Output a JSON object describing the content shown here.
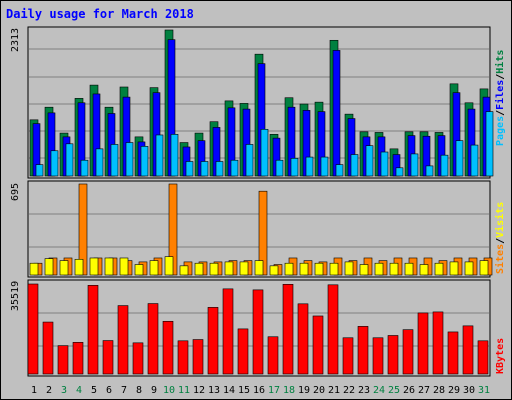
{
  "title": "Daily usage for March 2018",
  "colors": {
    "background": "#c0c0c0",
    "panel": "#c0c0c0",
    "hits": "#008040",
    "files": "#0000ff",
    "pages": "#00c0ff",
    "visits": "#ff8000",
    "sites": "#ffff00",
    "kbytes": "#ff0000",
    "title": "#0000ff",
    "weekend_day": "#008040"
  },
  "y_axis_labels": {
    "top": "2313",
    "middle": "695",
    "bottom": "35519"
  },
  "legend": {
    "top": [
      "Pages",
      "Files",
      "Hits"
    ],
    "middle": [
      "Sites",
      "Visits"
    ],
    "bottom": [
      "KBytes"
    ]
  },
  "chart_data": [
    {
      "type": "bar",
      "title": "Daily usage for March 2018",
      "panel": "hits_files_pages",
      "ylim": [
        0,
        2313
      ],
      "categories": [
        "1",
        "2",
        "3",
        "4",
        "5",
        "6",
        "7",
        "8",
        "9",
        "10",
        "11",
        "12",
        "13",
        "14",
        "15",
        "16",
        "17",
        "18",
        "19",
        "20",
        "21",
        "22",
        "23",
        "24",
        "25",
        "26",
        "27",
        "28",
        "29",
        "30",
        "31"
      ],
      "series": [
        {
          "name": "Hits",
          "values": [
            890,
            1090,
            680,
            1230,
            1440,
            1090,
            1410,
            620,
            1400,
            2313,
            530,
            680,
            860,
            1190,
            1150,
            1930,
            660,
            1240,
            1140,
            1170,
            2150,
            980,
            700,
            690,
            430,
            700,
            700,
            690,
            1460,
            1160,
            1380
          ]
        },
        {
          "name": "Files",
          "values": [
            830,
            1000,
            620,
            1160,
            1300,
            990,
            1250,
            540,
            1320,
            2160,
            460,
            560,
            770,
            1080,
            1060,
            1780,
            600,
            1090,
            1040,
            1020,
            1990,
            910,
            620,
            620,
            340,
            640,
            630,
            640,
            1320,
            1060,
            1250
          ]
        },
        {
          "name": "Pages",
          "values": [
            180,
            400,
            510,
            250,
            430,
            500,
            530,
            470,
            650,
            660,
            230,
            230,
            230,
            250,
            500,
            740,
            250,
            280,
            300,
            300,
            180,
            340,
            480,
            380,
            130,
            350,
            160,
            330,
            560,
            490,
            1020
          ]
        }
      ]
    },
    {
      "type": "bar",
      "panel": "visits_sites",
      "ylim": [
        0,
        695
      ],
      "categories": [
        "1",
        "2",
        "3",
        "4",
        "5",
        "6",
        "7",
        "8",
        "9",
        "10",
        "11",
        "12",
        "13",
        "14",
        "15",
        "16",
        "17",
        "18",
        "19",
        "20",
        "21",
        "22",
        "23",
        "24",
        "25",
        "26",
        "27",
        "28",
        "29",
        "30",
        "31"
      ],
      "series": [
        {
          "name": "Visits",
          "values": [
            90,
            130,
            130,
            695,
            130,
            130,
            110,
            100,
            130,
            695,
            100,
            100,
            100,
            110,
            110,
            640,
            80,
            130,
            110,
            100,
            130,
            110,
            130,
            110,
            130,
            130,
            130,
            110,
            130,
            130,
            130
          ]
        },
        {
          "name": "Sites",
          "values": [
            90,
            125,
            110,
            120,
            130,
            130,
            130,
            80,
            110,
            140,
            70,
            90,
            90,
            100,
            100,
            110,
            70,
            90,
            90,
            90,
            90,
            100,
            80,
            90,
            90,
            90,
            80,
            90,
            100,
            100,
            110
          ]
        }
      ]
    },
    {
      "type": "bar",
      "panel": "kbytes",
      "ylim": [
        0,
        35519
      ],
      "categories": [
        "1",
        "2",
        "3",
        "4",
        "5",
        "6",
        "7",
        "8",
        "9",
        "10",
        "11",
        "12",
        "13",
        "14",
        "15",
        "16",
        "17",
        "18",
        "19",
        "20",
        "21",
        "22",
        "23",
        "24",
        "25",
        "26",
        "27",
        "28",
        "29",
        "30",
        "31"
      ],
      "series": [
        {
          "name": "KBytes",
          "values": [
            35519,
            20500,
            11200,
            12500,
            35000,
            13200,
            27000,
            12300,
            27800,
            20800,
            13100,
            13600,
            26300,
            33600,
            17800,
            33200,
            14700,
            35400,
            27700,
            22900,
            35200,
            14300,
            18800,
            14300,
            15200,
            17500,
            24100,
            24500,
            16600,
            19000,
            13100
          ]
        }
      ]
    }
  ],
  "x_labels": [
    {
      "text": "1",
      "weekend": false
    },
    {
      "text": "2",
      "weekend": false
    },
    {
      "text": "3",
      "weekend": true
    },
    {
      "text": "4",
      "weekend": true
    },
    {
      "text": "5",
      "weekend": false
    },
    {
      "text": "6",
      "weekend": false
    },
    {
      "text": "7",
      "weekend": false
    },
    {
      "text": "8",
      "weekend": false
    },
    {
      "text": "9",
      "weekend": false
    },
    {
      "text": "10",
      "weekend": true
    },
    {
      "text": "11",
      "weekend": true
    },
    {
      "text": "12",
      "weekend": false
    },
    {
      "text": "13",
      "weekend": false
    },
    {
      "text": "14",
      "weekend": false
    },
    {
      "text": "15",
      "weekend": false
    },
    {
      "text": "16",
      "weekend": false
    },
    {
      "text": "17",
      "weekend": true
    },
    {
      "text": "18",
      "weekend": true
    },
    {
      "text": "19",
      "weekend": false
    },
    {
      "text": "20",
      "weekend": false
    },
    {
      "text": "21",
      "weekend": false
    },
    {
      "text": "22",
      "weekend": false
    },
    {
      "text": "23",
      "weekend": false
    },
    {
      "text": "24",
      "weekend": true
    },
    {
      "text": "25",
      "weekend": true
    },
    {
      "text": "26",
      "weekend": false
    },
    {
      "text": "27",
      "weekend": false
    },
    {
      "text": "28",
      "weekend": false
    },
    {
      "text": "29",
      "weekend": false
    },
    {
      "text": "30",
      "weekend": false
    },
    {
      "text": "31",
      "weekend": true
    }
  ]
}
